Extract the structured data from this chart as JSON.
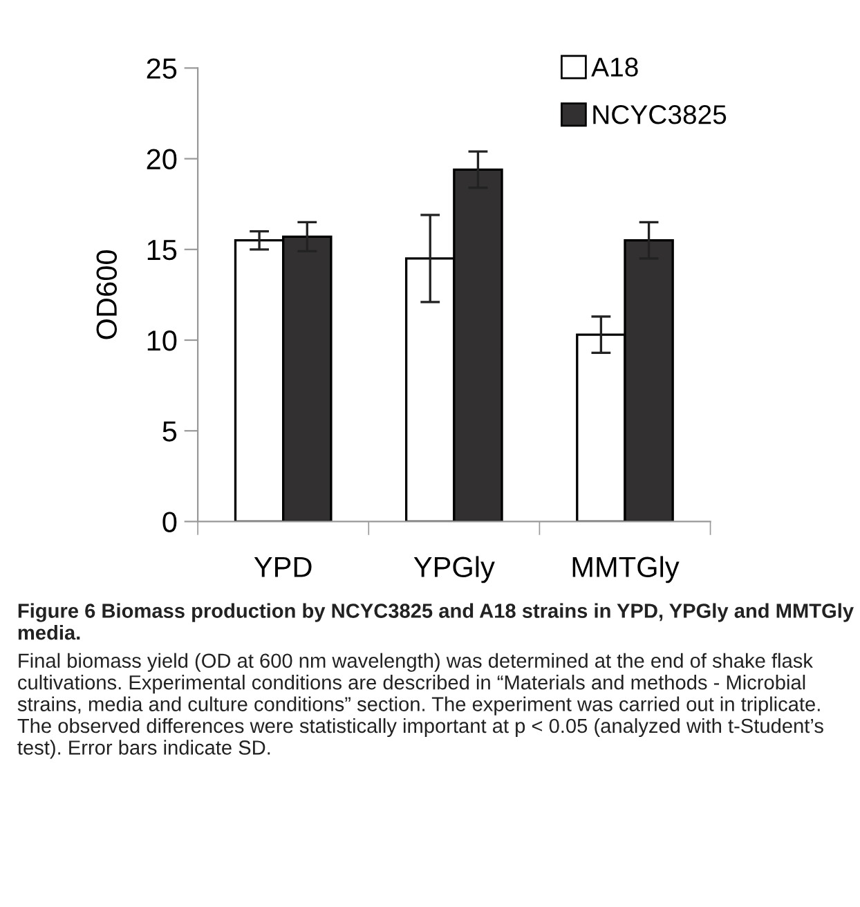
{
  "chart_data": {
    "type": "bar",
    "ylabel": "OD600",
    "categories": [
      "YPD",
      "YPGly",
      "MMTGly"
    ],
    "series": [
      {
        "name": "A18",
        "color": "#ffffff",
        "values": [
          15.5,
          14.5,
          10.3
        ],
        "errors": [
          0.5,
          2.4,
          1.0
        ]
      },
      {
        "name": "NCYC3825",
        "color": "#323031",
        "values": [
          15.7,
          19.4,
          15.5
        ],
        "errors": [
          0.8,
          1.0,
          1.0
        ]
      }
    ],
    "ylim": [
      0,
      25
    ],
    "yticks": [
      0,
      5,
      10,
      15,
      20,
      25
    ],
    "grid": false,
    "legend": "top right",
    "annotations": [
      "Figure 6 Biomass production by NCYC3825 and A18 strains in YPD, YPGly and MMTGly media.",
      "Final biomass yield (OD at 600 nm wavelength) was determined at the end of shake flask cultivations. Experimental conditions are described in “Materials and methods - Microbial strains, media and culture conditions” section. The experiment was carried out in triplicate. The observed differences were statistically important at p < 0.05 (analyzed with t-Student’s test). Error bars indicate SD."
    ]
  }
}
